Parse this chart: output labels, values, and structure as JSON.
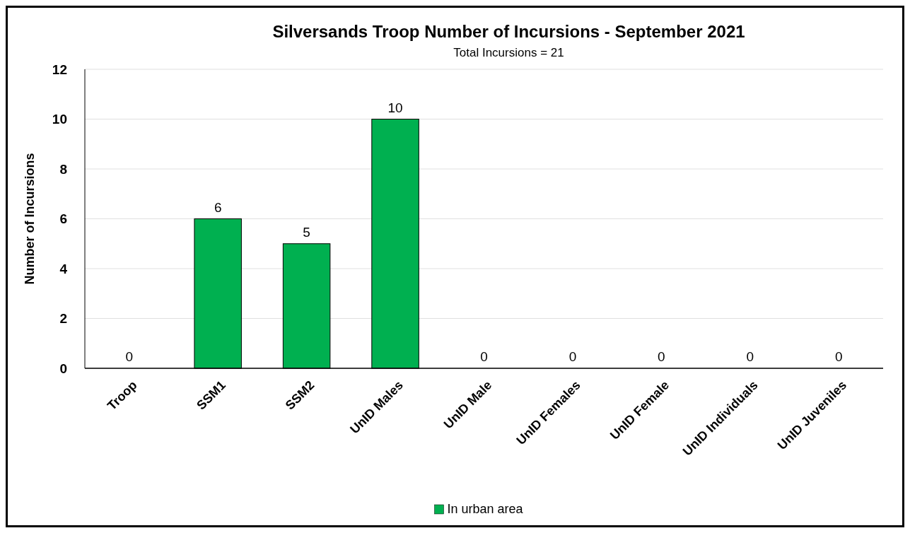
{
  "chart_data": {
    "type": "bar",
    "title": "Silversands Troop Number of Incursions - September 2021",
    "subtitle": "Total Incursions = 21",
    "ylabel": "Number of Incursions",
    "categories": [
      "Troop",
      "SSM1",
      "SSM2",
      "UnID Males",
      "UnID Male",
      "UnID Females",
      "UnID Female",
      "UnID Individuals",
      "UnID Juveniles"
    ],
    "series": [
      {
        "name": "In urban area",
        "color": "#00b050",
        "values": [
          0,
          6,
          5,
          10,
          0,
          0,
          0,
          0,
          0
        ]
      }
    ],
    "ylim": [
      0,
      12
    ],
    "yticks": [
      0,
      2,
      4,
      6,
      8,
      10,
      12
    ],
    "grid": "y",
    "legend": "bottom",
    "data_labels": true
  }
}
